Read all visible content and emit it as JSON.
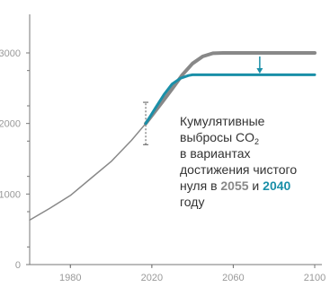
{
  "chart_data": {
    "type": "line",
    "x_ticks": [
      "1980",
      "2020",
      "2060",
      "2100"
    ],
    "y_ticks": [
      "0",
      "1000",
      "2000",
      "3000"
    ],
    "xlim": [
      1960,
      2100
    ],
    "ylim": [
      0,
      3000
    ],
    "grid": false,
    "series": [
      {
        "line_color": "#888888",
        "x": [
          1960,
          1970,
          1980,
          1990,
          2000,
          2010,
          2017,
          2025,
          2030,
          2035,
          2040,
          2045,
          2050,
          2055,
          2060,
          2070,
          2080,
          2090,
          2100
        ],
        "values": [
          630,
          800,
          980,
          1220,
          1460,
          1760,
          2000,
          2300,
          2490,
          2690,
          2850,
          2950,
          2995,
          3000,
          3000,
          3000,
          3000,
          3000,
          3000
        ]
      },
      {
        "line_color": "#1a8fa8",
        "x": [
          2017,
          2022,
          2026,
          2030,
          2034,
          2038,
          2040,
          2045,
          2060,
          2080,
          2100
        ],
        "values": [
          2000,
          2230,
          2410,
          2560,
          2640,
          2680,
          2690,
          2690,
          2690,
          2690,
          2690
        ]
      }
    ],
    "uncertainty_bar": {
      "x": 2017,
      "low": 1700,
      "high": 2300
    },
    "reduction_arrow": {
      "x": 2073,
      "from": 3000,
      "to": 2720
    },
    "annotation": {
      "line1": "Кумулятивные",
      "line2_main": "выбросы CO",
      "line2_sub": "2",
      "line3": "в вариантах",
      "line4": "достижения чистого",
      "line5_prefix": "нуля в ",
      "year_a": "2055",
      "line5_mid": " и ",
      "year_b": "2040",
      "line6": "году"
    },
    "colors": {
      "axis": "#777777",
      "tick_label": "#999999",
      "series_gray": "#888888",
      "series_teal": "#1a8fa8",
      "highlight_gray": "#888888",
      "highlight_teal": "#1a8fa8"
    }
  }
}
